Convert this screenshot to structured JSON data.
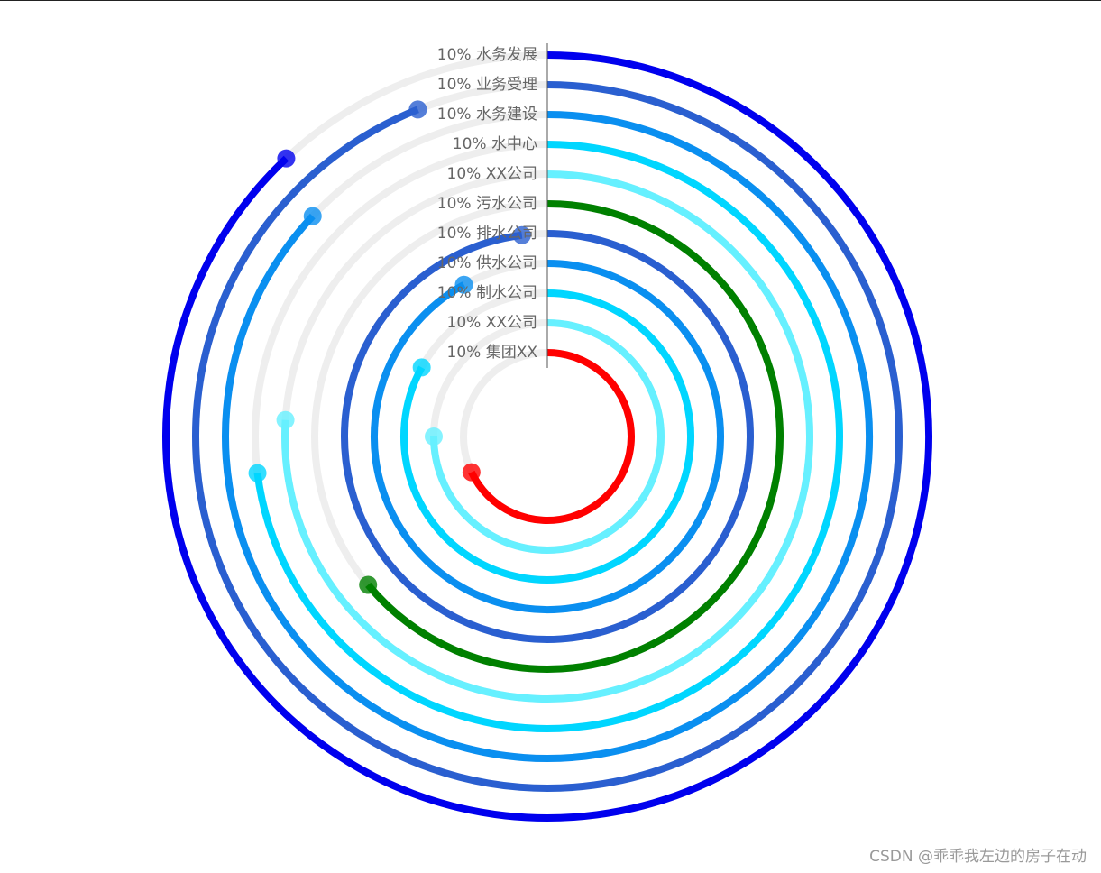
{
  "chart_data": {
    "type": "radial-bar",
    "start_angle": "top (12 o'clock)",
    "direction": "clockwise",
    "track_color": "#eeeeee",
    "series": [
      {
        "label": "10% 集团XX",
        "percent": 10,
        "value": 0.68,
        "color": "#ff0000"
      },
      {
        "label": "10% XX公司",
        "percent": 10,
        "value": 0.75,
        "color": "#66f0ff"
      },
      {
        "label": "10% 制水公司",
        "percent": 10,
        "value": 0.83,
        "color": "#00d6ff"
      },
      {
        "label": "10% 供水公司",
        "percent": 10,
        "value": 0.92,
        "color": "#0a8ff0"
      },
      {
        "label": "10% 排水公司",
        "percent": 10,
        "value": 0.98,
        "color": "#2a5fd0"
      },
      {
        "label": "10% 污水公司",
        "percent": 10,
        "value": 0.64,
        "color": "#008000"
      },
      {
        "label": "10% XX公司",
        "percent": 10,
        "value": 0.76,
        "color": "#66f0ff"
      },
      {
        "label": "10% 水中心",
        "percent": 10,
        "value": 0.73,
        "color": "#00d6ff"
      },
      {
        "label": "10% 水务建设",
        "percent": 10,
        "value": 0.87,
        "color": "#0a8ff0"
      },
      {
        "label": "10% 业务受理",
        "percent": 10,
        "value": 0.94,
        "color": "#2a5fd0"
      },
      {
        "label": "10% 水务发展",
        "percent": 10,
        "value": 0.88,
        "color": "#0000ee"
      }
    ]
  },
  "watermark": "CSDN @乖乖我左边的房子在动"
}
